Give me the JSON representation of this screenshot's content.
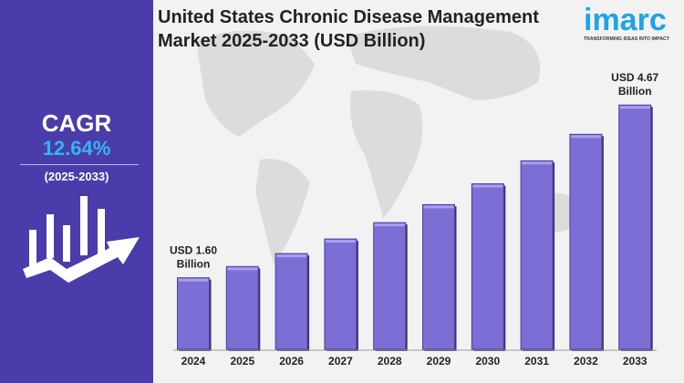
{
  "title_line1": "United States Chronic Disease Management",
  "title_line2": "Market 2025-2033 (USD Billion)",
  "logo": {
    "word": "imarc",
    "tagline": "TRANSFORMING IDEAS INTO IMPACT",
    "color": "#1fa3e8"
  },
  "cagr": {
    "label": "CAGR",
    "value": "12.64%",
    "period": "(2025-2033)"
  },
  "colors": {
    "panel": "#4b3cab",
    "bar": "#7b6fd6",
    "accent": "#35b6f0"
  },
  "chart_data": {
    "type": "bar",
    "title": "United States Chronic Disease Management Market 2025-2033 (USD Billion)",
    "categories": [
      "2024",
      "2025",
      "2026",
      "2027",
      "2028",
      "2029",
      "2030",
      "2031",
      "2032",
      "2033"
    ],
    "values": [
      1.6,
      1.8,
      2.03,
      2.29,
      2.58,
      2.9,
      3.27,
      3.68,
      4.15,
      4.67
    ],
    "annotations": [
      {
        "category": "2024",
        "line1": "USD 1.60",
        "line2": "Billion"
      },
      {
        "category": "2033",
        "line1": "USD 4.67",
        "line2": "Billion"
      }
    ],
    "ylim": [
      0.33,
      4.9
    ],
    "grid": false,
    "xlabel": "",
    "ylabel": ""
  }
}
